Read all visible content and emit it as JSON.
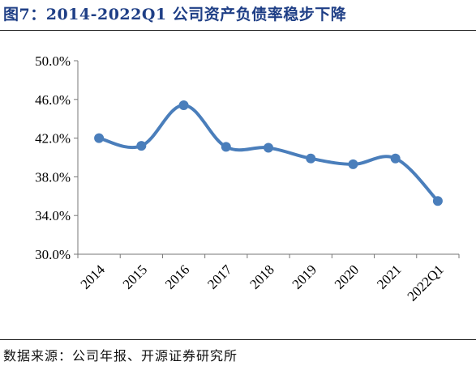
{
  "header": {
    "title": "图7：2014-2022Q1 公司资产负债率稳步下降"
  },
  "footer": {
    "source": "数据来源：公司年报、开源证券研究所"
  },
  "chart_data": {
    "type": "line",
    "title": "图7：2014-2022Q1 公司资产负债率稳步下降",
    "categories": [
      "2014",
      "2015",
      "2016",
      "2017",
      "2018",
      "2019",
      "2020",
      "2021",
      "2022Q1"
    ],
    "series": [
      {
        "values": [
          42.0,
          41.2,
          45.4,
          41.1,
          41.0,
          39.9,
          39.3,
          39.9,
          35.5
        ]
      }
    ],
    "ylim": [
      30,
      50
    ],
    "yticks": [
      30,
      34,
      38,
      42,
      46,
      50
    ],
    "ytick_labels": [
      "30.0%",
      "34.0%",
      "38.0%",
      "42.0%",
      "46.0%",
      "50.0%"
    ],
    "xlabel": "",
    "ylabel": "",
    "grid": false,
    "legend": "none",
    "line_color": "#4a7ebb"
  }
}
